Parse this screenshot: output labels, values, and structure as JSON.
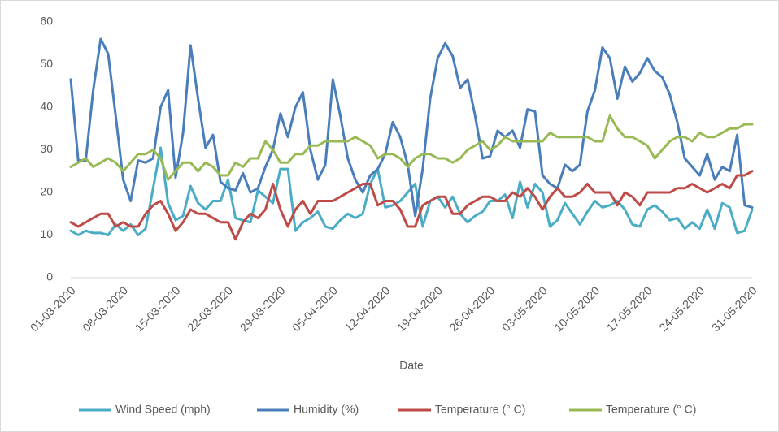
{
  "chart_data": {
    "type": "line",
    "x_label": "Date",
    "categories": [
      "01-03-2020",
      null,
      null,
      null,
      null,
      null,
      null,
      "08-03-2020",
      null,
      null,
      null,
      null,
      null,
      null,
      "15-03-2020",
      null,
      null,
      null,
      null,
      null,
      null,
      "22-03-2020",
      null,
      null,
      null,
      null,
      null,
      null,
      "29-03-2020",
      null,
      null,
      null,
      null,
      null,
      null,
      "05-04-2020",
      null,
      null,
      null,
      null,
      null,
      null,
      "12-04-2020",
      null,
      null,
      null,
      null,
      null,
      null,
      "19-04-2020",
      null,
      null,
      null,
      null,
      null,
      null,
      "26-04-2020",
      null,
      null,
      null,
      null,
      null,
      null,
      "03-05-2020",
      null,
      null,
      null,
      null,
      null,
      null,
      "10-05-2020",
      null,
      null,
      null,
      null,
      null,
      null,
      "17-05-2020",
      null,
      null,
      null,
      null,
      null,
      null,
      "24-05-2020",
      null,
      null,
      null,
      null,
      null,
      null,
      "31-05-2020"
    ],
    "series": [
      {
        "name": "Wind Speed (mph)",
        "color": "#4bacc6",
        "values": [
          11,
          10,
          11,
          10.5,
          10.5,
          10,
          12.5,
          11,
          12.5,
          10,
          11.5,
          21,
          30.5,
          17.5,
          13.5,
          14.5,
          21.5,
          17.5,
          16,
          18,
          18,
          23,
          14,
          13.5,
          13,
          20.5,
          19,
          17.5,
          25.5,
          25.5,
          11,
          13,
          14,
          15.5,
          12,
          11.5,
          13.5,
          15,
          14,
          15,
          22,
          25.5,
          16.5,
          17,
          18,
          20,
          22,
          12,
          18,
          19,
          16.5,
          19,
          15,
          13,
          14.5,
          15.5,
          18,
          18,
          19.5,
          14,
          22.5,
          16.5,
          22,
          20,
          12,
          13.5,
          17.5,
          15,
          12.5,
          15.5,
          18,
          16.5,
          17,
          18,
          16,
          12.5,
          12,
          16,
          17,
          15.5,
          13.5,
          14,
          11.5,
          13,
          11.5,
          16,
          11.5,
          17.5,
          16.5,
          10.5,
          11,
          16
        ]
      },
      {
        "name": "Humidity (%)",
        "color": "#4a7ebb",
        "values": [
          46.5,
          27.5,
          27.5,
          44,
          56,
          52.5,
          38,
          23,
          18,
          27.5,
          27,
          28,
          40,
          44,
          23.5,
          34,
          54.5,
          42,
          30.5,
          33.5,
          22.5,
          21,
          20.5,
          24.5,
          20,
          21,
          26,
          30,
          38.5,
          33,
          40,
          43.5,
          30,
          23,
          26.5,
          46.5,
          38,
          28,
          23,
          20,
          24,
          25.5,
          29,
          36.5,
          33,
          26.5,
          14.5,
          25.5,
          42,
          51.5,
          55,
          52,
          44.5,
          46.5,
          38,
          28,
          28.5,
          34.5,
          33,
          34.5,
          30.5,
          39.5,
          39,
          24,
          22,
          21,
          26.5,
          25,
          26.5,
          39,
          44,
          54,
          51.5,
          42,
          49.5,
          46,
          48,
          51.5,
          48.5,
          47,
          43,
          36.5,
          28,
          26,
          24,
          29,
          23,
          26,
          25,
          33.5,
          17,
          16.5
        ]
      },
      {
        "name": "Temperature (° C)",
        "color": "#be4b48",
        "values": [
          13,
          12,
          13,
          14,
          15,
          15,
          12,
          13,
          12,
          12,
          15,
          17,
          18,
          15,
          11,
          13,
          16,
          15,
          15,
          14,
          13,
          13,
          9,
          13,
          15,
          14,
          16,
          22,
          16,
          12,
          16,
          18,
          15,
          18,
          18,
          18,
          19,
          20,
          21,
          22,
          22,
          17,
          18,
          18,
          16,
          12,
          12,
          17,
          18,
          19,
          19,
          15,
          15,
          17,
          18,
          19,
          19,
          18,
          18,
          20,
          19,
          21,
          19,
          16,
          19,
          21,
          19,
          19,
          20,
          22,
          20,
          20,
          20,
          17,
          20,
          19,
          17,
          20,
          20,
          20,
          20,
          21,
          21,
          22,
          21,
          20,
          21,
          22,
          21,
          24,
          24,
          25
        ]
      },
      {
        "name": "Temperature (° C)",
        "color": "#98b954",
        "values": [
          26,
          27,
          28,
          26,
          27,
          28,
          27,
          25,
          27,
          29,
          29,
          30,
          28,
          23,
          25,
          27,
          27,
          25,
          27,
          26,
          24,
          24,
          27,
          26,
          28,
          28,
          32,
          30,
          27,
          27,
          29,
          29,
          31,
          31,
          32,
          32,
          32,
          32,
          33,
          32,
          31,
          28,
          29,
          29,
          28,
          26,
          28,
          29,
          29,
          28,
          28,
          27,
          28,
          30,
          31,
          32,
          30,
          31,
          33,
          32,
          32,
          32,
          32,
          32,
          34,
          33,
          33,
          33,
          33,
          33,
          32,
          32,
          38,
          35,
          33,
          33,
          32,
          31,
          28,
          30,
          32,
          33,
          33,
          32,
          34,
          33,
          33,
          34,
          35,
          35,
          36,
          36
        ]
      }
    ],
    "ylim": [
      0,
      60
    ],
    "yticks": [
      0,
      10,
      20,
      30,
      40,
      50,
      60
    ],
    "grid": false,
    "legend": "bottom"
  }
}
